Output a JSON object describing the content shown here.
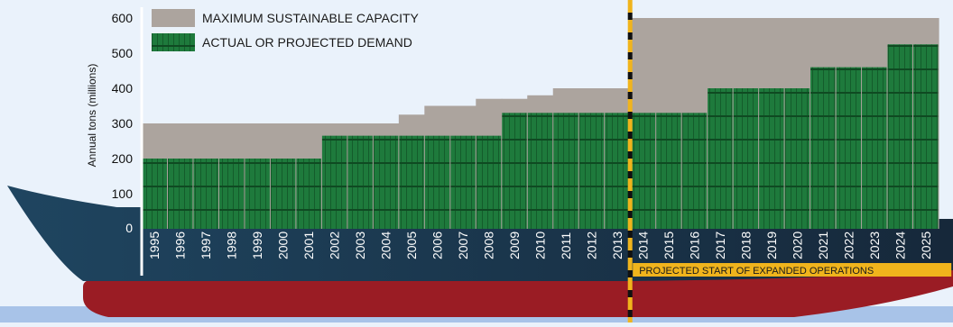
{
  "chart_data": {
    "type": "bar",
    "ylabel": "Annual tons (millions)",
    "ylim": [
      0,
      600
    ],
    "yticks": [
      0,
      100,
      200,
      300,
      400,
      500,
      600
    ],
    "categories": [
      "1995",
      "1996",
      "1997",
      "1998",
      "1999",
      "2000",
      "2001",
      "2002",
      "2003",
      "2004",
      "2005",
      "2006",
      "2007",
      "2008",
      "2009",
      "2010",
      "2011",
      "2012",
      "2013",
      "2014",
      "2015",
      "2016",
      "2017",
      "2018",
      "2019",
      "2020",
      "2021",
      "2022",
      "2023",
      "2024",
      "2025"
    ],
    "series": [
      {
        "name": "MAXIMUM SUSTAINABLE CAPACITY",
        "color": "#aca49e",
        "values": [
          300,
          300,
          300,
          300,
          300,
          300,
          300,
          300,
          300,
          300,
          325,
          350,
          350,
          370,
          370,
          380,
          400,
          400,
          400,
          600,
          600,
          600,
          600,
          600,
          600,
          600,
          600,
          600,
          600,
          600,
          600
        ]
      },
      {
        "name": "ACTUAL OR PROJECTED DEMAND",
        "color": "#1e7a3c",
        "values": [
          200,
          200,
          200,
          200,
          200,
          200,
          200,
          265,
          265,
          265,
          265,
          265,
          265,
          265,
          330,
          330,
          330,
          330,
          330,
          330,
          330,
          330,
          400,
          400,
          400,
          400,
          460,
          460,
          460,
          525,
          525
        ]
      }
    ],
    "annotations": [
      {
        "text": "PROJECTED START OF EXPANDED OPERATIONS",
        "after": "2013"
      }
    ],
    "grid": false,
    "legend": "top-left"
  },
  "colors": {
    "background": "#eaf2fb",
    "hull_dark": "#1c3a52",
    "hull_red": "#9a1c24",
    "sea": "#a8c3e8",
    "marker_yellow": "#f0b41c"
  }
}
